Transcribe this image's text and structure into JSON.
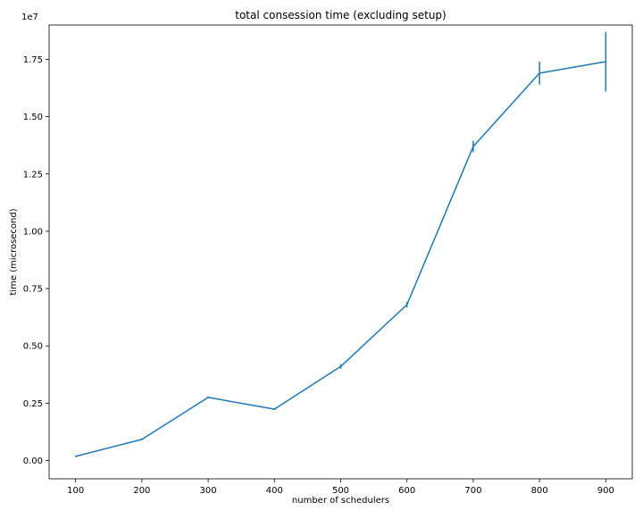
{
  "chart_data": {
    "type": "line",
    "title": "total consession time (excluding setup)",
    "xlabel": "number of schedulers",
    "ylabel": "time (microsecond)",
    "y_offset_text": "1e7",
    "y_scale_factor": 10000000,
    "xlim": [
      60,
      940
    ],
    "ylim": [
      -0.08,
      1.9
    ],
    "xticks": [
      100,
      200,
      300,
      400,
      500,
      600,
      700,
      800,
      900
    ],
    "yticks": [
      0.0,
      0.25,
      0.5,
      0.75,
      1.0,
      1.25,
      1.5,
      1.75
    ],
    "ytick_labels": [
      "0.00",
      "0.25",
      "0.50",
      "0.75",
      "1.00",
      "1.25",
      "1.50",
      "1.75"
    ],
    "grid": false,
    "line_color": "#1f77b4",
    "series": [
      {
        "x": [
          100,
          200,
          300,
          400,
          500,
          600,
          700,
          800,
          900
        ],
        "y": [
          0.018,
          0.092,
          0.275,
          0.224,
          0.41,
          0.68,
          1.37,
          1.69,
          1.74
        ],
        "yerr": [
          0.003,
          0.003,
          0.004,
          0.004,
          0.01,
          0.012,
          0.025,
          0.05,
          0.13
        ]
      }
    ]
  }
}
